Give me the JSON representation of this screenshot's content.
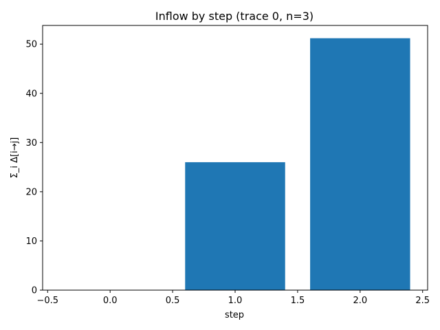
{
  "chart_data": {
    "type": "bar",
    "title": "Inflow by step (trace 0, n=3)",
    "xlabel": "step",
    "ylabel": "Σ_i Δ[i→j]",
    "x": [
      0,
      1,
      2
    ],
    "values": [
      0,
      26,
      51.2
    ],
    "bar_width": 0.8,
    "xlim": [
      -0.54,
      2.54
    ],
    "ylim": [
      0,
      53.8
    ],
    "xticks": [
      -0.5,
      0.0,
      0.5,
      1.0,
      1.5,
      2.0,
      2.5
    ],
    "xtick_labels": [
      "−0.5",
      "0.0",
      "0.5",
      "1.0",
      "1.5",
      "2.0",
      "2.5"
    ],
    "yticks": [
      0,
      10,
      20,
      30,
      40,
      50
    ],
    "ytick_labels": [
      "0",
      "10",
      "20",
      "30",
      "40",
      "50"
    ],
    "bar_color": "#1f77b4",
    "grid": false,
    "legend": "none"
  }
}
